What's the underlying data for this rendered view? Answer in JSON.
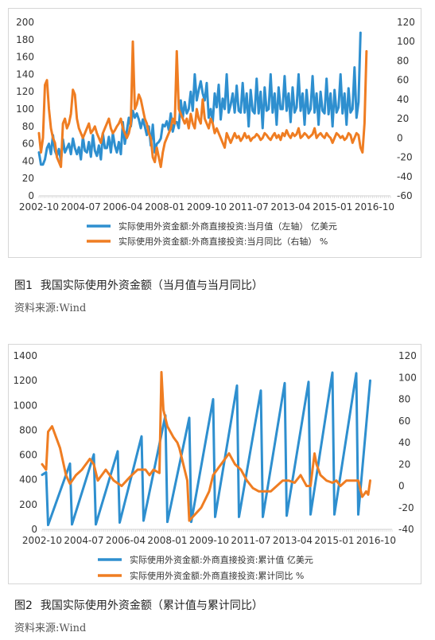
{
  "figures": [
    {
      "number": "图1",
      "caption": "我国实际使用外资金额（当月值与当月同比）",
      "source": "资料来源:Wind"
    },
    {
      "number": "图2",
      "caption": "我国实际使用外资金额（累计值与累计同比）",
      "source": "资料来源:Wind"
    }
  ],
  "chart_data": [
    {
      "type": "line",
      "title": "",
      "x_tick_labels": [
        "2002-10",
        "2004-07",
        "2006-04",
        "2008-01",
        "2009-10",
        "2011-07",
        "2013-04",
        "2015-01",
        "2016-10"
      ],
      "x_range": [
        "2002-10",
        "2017-06"
      ],
      "y_left": {
        "range": [
          0,
          200
        ],
        "ticks": [
          0,
          20,
          40,
          60,
          80,
          100,
          120,
          140,
          160,
          180,
          200
        ]
      },
      "y_right": {
        "range": [
          -60,
          120
        ],
        "ticks": [
          -60,
          -40,
          -20,
          0,
          20,
          40,
          60,
          80,
          100,
          120
        ]
      },
      "grid": false,
      "legend_position": "bottom",
      "series": [
        {
          "name": "实际使用外资金额:外商直接投资:当月值（左轴） 亿美元",
          "axis": "left",
          "color": "#2e8fcf",
          "values": [
            50,
            36,
            36,
            42,
            55,
            60,
            48,
            70,
            52,
            46,
            54,
            40,
            65,
            50,
            55,
            60,
            48,
            66,
            55,
            48,
            56,
            42,
            68,
            52,
            50,
            62,
            45,
            70,
            52,
            46,
            58,
            42,
            72,
            55,
            55,
            68,
            50,
            72,
            58,
            50,
            62,
            48,
            85,
            60,
            75,
            90,
            80,
            98,
            90,
            95,
            88,
            78,
            88,
            80,
            70,
            80,
            58,
            82,
            50,
            60,
            62,
            66,
            82,
            80,
            86,
            76,
            95,
            74,
            84,
            85,
            78,
            110,
            90,
            108,
            95,
            100,
            120,
            98,
            140,
            110,
            122,
            132,
            118,
            110,
            130,
            90,
            100,
            85,
            118,
            102,
            128,
            88,
            112,
            100,
            140,
            96,
            105,
            118,
            96,
            127,
            98,
            96,
            130,
            96,
            118,
            80,
            122,
            98,
            95,
            135,
            95,
            120,
            78,
            125,
            98,
            100,
            140,
            96,
            118,
            82,
            125,
            100,
            100,
            138,
            98,
            118,
            85,
            125,
            96,
            102,
            140,
            98,
            118,
            82,
            122,
            95,
            100,
            138,
            96,
            118,
            82,
            120,
            98,
            95,
            135,
            94,
            118,
            80,
            122,
            96,
            102,
            140,
            95,
            118,
            82,
            124,
            96,
            100,
            148,
            90,
            108,
            188
          ]
        },
        {
          "name": "实际使用外资金额:外商直接投资:当月同比（右轴） %",
          "axis": "right",
          "color": "#ef7d22",
          "values": [
            5,
            -15,
            0,
            55,
            60,
            30,
            10,
            0,
            -5,
            -20,
            -25,
            -30,
            15,
            20,
            10,
            15,
            25,
            50,
            45,
            20,
            10,
            5,
            0,
            5,
            10,
            15,
            5,
            8,
            12,
            5,
            0,
            -5,
            5,
            10,
            15,
            20,
            10,
            5,
            8,
            12,
            15,
            20,
            10,
            5,
            0,
            5,
            15,
            100,
            30,
            35,
            45,
            40,
            30,
            20,
            15,
            5,
            0,
            -20,
            -25,
            -10,
            -20,
            -30,
            -15,
            -5,
            0,
            5,
            10,
            20,
            15,
            90,
            30,
            25,
            20,
            15,
            20,
            10,
            25,
            15,
            10,
            30,
            20,
            15,
            40,
            20,
            15,
            10,
            20,
            15,
            5,
            10,
            5,
            0,
            -5,
            -10,
            5,
            0,
            -5,
            0,
            5,
            0,
            2,
            -3,
            0,
            5,
            0,
            2,
            -3,
            0,
            1,
            4,
            2,
            -2,
            0,
            5,
            3,
            0,
            -2,
            2,
            5,
            0,
            3,
            -2,
            5,
            2,
            8,
            3,
            0,
            5,
            2,
            4,
            10,
            0,
            2,
            5,
            3,
            0,
            2,
            4,
            10,
            0,
            3,
            5,
            2,
            0,
            5,
            2,
            0,
            -5,
            0,
            5,
            3,
            0,
            2,
            -2,
            0,
            5,
            3,
            -5,
            0,
            5,
            3,
            -10,
            -15,
            15,
            90
          ]
        }
      ]
    },
    {
      "type": "line",
      "title": "",
      "x_tick_labels": [
        "2002-10",
        "2004-07",
        "2006-04",
        "2008-01",
        "2009-10",
        "2011-07",
        "2013-04",
        "2015-01",
        "2016-10"
      ],
      "x_range": [
        "2002-10",
        "2017-06"
      ],
      "y_left": {
        "range": [
          0,
          1400
        ],
        "ticks": [
          0,
          200,
          400,
          600,
          800,
          1000,
          1200,
          1400
        ]
      },
      "y_right": {
        "range": [
          -40,
          120
        ],
        "ticks": [
          -40,
          -20,
          0,
          20,
          40,
          60,
          80,
          100,
          120
        ]
      },
      "grid": false,
      "legend_position": "bottom",
      "series": [
        {
          "name": "实际使用外资金额:外商直接投资:累计值 亿美元",
          "axis": "left",
          "color": "#2e8fcf",
          "anchors": [
            [
              0,
              440
            ],
            [
              2,
              460
            ],
            [
              3,
              35
            ],
            [
              14,
              530
            ],
            [
              15,
              40
            ],
            [
              26,
              605
            ],
            [
              27,
              40
            ],
            [
              38,
              630
            ],
            [
              39,
              55
            ],
            [
              50,
              750
            ],
            [
              51,
              70
            ],
            [
              62,
              920
            ],
            [
              63,
              60
            ],
            [
              74,
              900
            ],
            [
              75,
              60
            ],
            [
              86,
              1050
            ],
            [
              87,
              100
            ],
            [
              98,
              1160
            ],
            [
              99,
              100
            ],
            [
              110,
              1120
            ],
            [
              111,
              100
            ],
            [
              122,
              1180
            ],
            [
              123,
              110
            ],
            [
              134,
              1190
            ],
            [
              135,
              120
            ],
            [
              146,
              1265
            ],
            [
              147,
              120
            ],
            [
              158,
              1260
            ],
            [
              159,
              120
            ],
            [
              165,
              1200
            ]
          ]
        },
        {
          "name": "实际使用外资金额:外商直接投资:累计同比 %",
          "axis": "right",
          "color": "#ef7d22",
          "anchors": [
            [
              0,
              20
            ],
            [
              2,
              15
            ],
            [
              3,
              50
            ],
            [
              5,
              55
            ],
            [
              7,
              45
            ],
            [
              9,
              35
            ],
            [
              12,
              10
            ],
            [
              14,
              2
            ],
            [
              17,
              10
            ],
            [
              20,
              15
            ],
            [
              24,
              25
            ],
            [
              26,
              20
            ],
            [
              28,
              5
            ],
            [
              32,
              15
            ],
            [
              36,
              5
            ],
            [
              40,
              0
            ],
            [
              44,
              8
            ],
            [
              48,
              15
            ],
            [
              52,
              15
            ],
            [
              54,
              10
            ],
            [
              56,
              15
            ],
            [
              59,
              12
            ],
            [
              60,
              105
            ],
            [
              61,
              70
            ],
            [
              63,
              55
            ],
            [
              66,
              45
            ],
            [
              68,
              40
            ],
            [
              69,
              35
            ],
            [
              71,
              20
            ],
            [
              73,
              5
            ],
            [
              74,
              -32
            ],
            [
              76,
              -28
            ],
            [
              80,
              -20
            ],
            [
              84,
              -5
            ],
            [
              86,
              10
            ],
            [
              88,
              15
            ],
            [
              90,
              20
            ],
            [
              92,
              25
            ],
            [
              94,
              30
            ],
            [
              97,
              20
            ],
            [
              100,
              15
            ],
            [
              103,
              5
            ],
            [
              106,
              -2
            ],
            [
              109,
              -5
            ],
            [
              112,
              -5
            ],
            [
              115,
              -5
            ],
            [
              118,
              0
            ],
            [
              121,
              5
            ],
            [
              124,
              5
            ],
            [
              127,
              3
            ],
            [
              130,
              10
            ],
            [
              133,
              0
            ],
            [
              135,
              0
            ],
            [
              137,
              30
            ],
            [
              138,
              20
            ],
            [
              140,
              10
            ],
            [
              143,
              5
            ],
            [
              146,
              3
            ],
            [
              148,
              5
            ],
            [
              150,
              0
            ],
            [
              153,
              5
            ],
            [
              156,
              5
            ],
            [
              159,
              5
            ],
            [
              161,
              -10
            ],
            [
              163,
              -5
            ],
            [
              164,
              -8
            ],
            [
              165,
              5
            ]
          ]
        }
      ]
    }
  ]
}
